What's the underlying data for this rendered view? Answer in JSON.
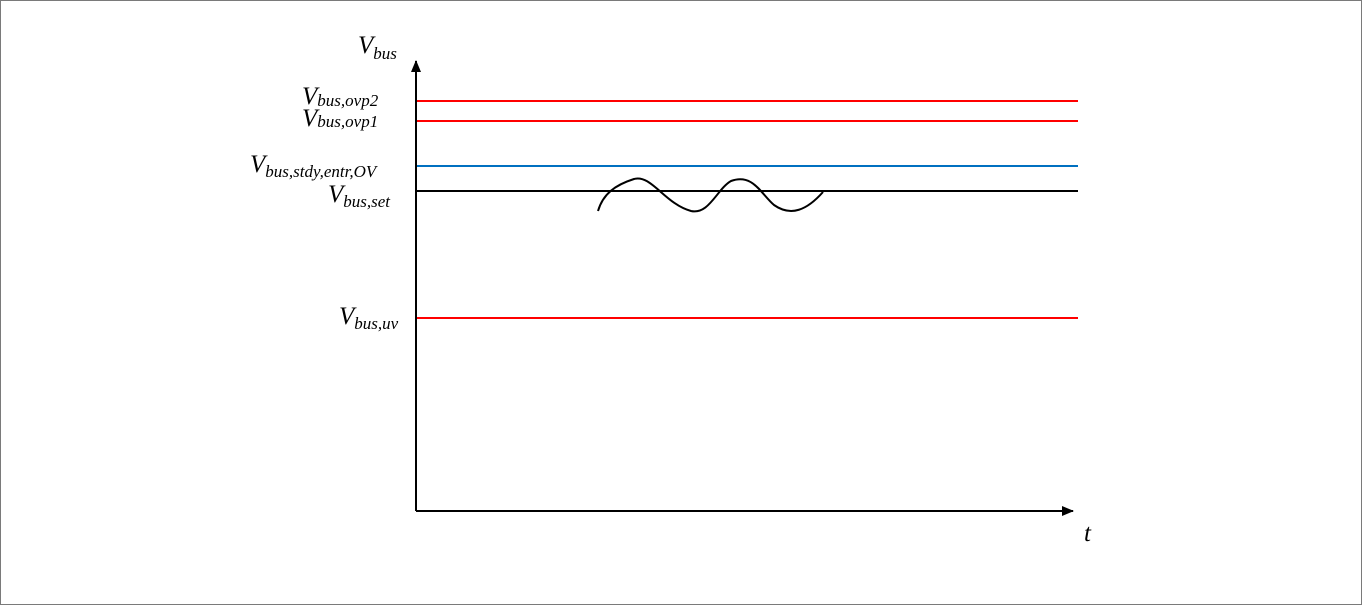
{
  "axes": {
    "y_label": {
      "main": "V",
      "sub": "bus"
    },
    "x_label": "t"
  },
  "levels": [
    {
      "key": "ovp2",
      "label_main": "V",
      "label_sub": "bus,ovp2",
      "color": "#ff0000",
      "order": 1
    },
    {
      "key": "ovp1",
      "label_main": "V",
      "label_sub": "bus,ovp1",
      "color": "#ff0000",
      "order": 2
    },
    {
      "key": "stdy_entr_ov",
      "label_main": "V",
      "label_sub": "bus,stdy,entr,OV",
      "color": "#0070c0",
      "order": 3
    },
    {
      "key": "set",
      "label_main": "V",
      "label_sub": "bus,set",
      "color": "#000000",
      "order": 4
    },
    {
      "key": "uv",
      "label_main": "V",
      "label_sub": "bus,uv",
      "color": "#ff0000",
      "order": 5
    }
  ],
  "waveform": {
    "description_color": "#000000",
    "around_level": "set"
  }
}
